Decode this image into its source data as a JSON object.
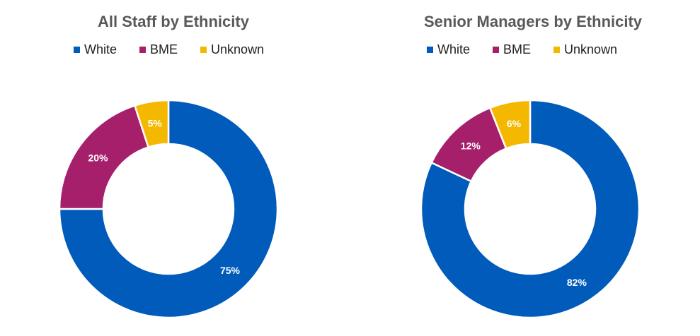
{
  "colors": {
    "white": "#005bbb",
    "bme": "#a51f6b",
    "unknown": "#f5b800"
  },
  "chart_data": [
    {
      "type": "pie",
      "variant": "donut",
      "title": "All Staff by Ethnicity",
      "legend_position": "top",
      "categories": [
        "White",
        "BME",
        "Unknown"
      ],
      "values": [
        75,
        20,
        5
      ],
      "data_labels": [
        "75%",
        "20%",
        "5%"
      ]
    },
    {
      "type": "pie",
      "variant": "donut",
      "title": "Senior Managers by Ethnicity",
      "legend_position": "top",
      "categories": [
        "White",
        "BME",
        "Unknown"
      ],
      "values": [
        82,
        12,
        6
      ],
      "data_labels": [
        "82%",
        "12%",
        "6%"
      ]
    }
  ]
}
